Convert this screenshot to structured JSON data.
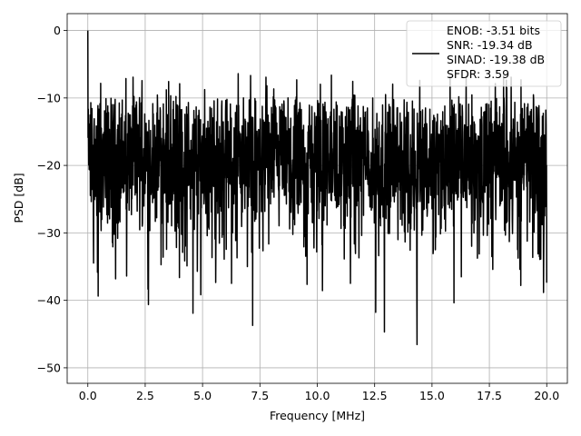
{
  "chart_data": {
    "type": "line",
    "title": "",
    "xlabel": "Frequency [MHz]",
    "ylabel": "PSD [dB]",
    "xlim": [
      -0.9,
      20.9
    ],
    "ylim": [
      -52.3,
      2.5
    ],
    "xticks": [
      0.0,
      2.5,
      5.0,
      7.5,
      10.0,
      12.5,
      15.0,
      17.5,
      20.0
    ],
    "xtick_labels": [
      "0.0",
      "2.5",
      "5.0",
      "7.5",
      "10.0",
      "12.5",
      "15.0",
      "17.5",
      "20.0"
    ],
    "yticks": [
      0,
      -10,
      -20,
      -30,
      -40,
      -50
    ],
    "ytick_labels": [
      "0",
      "−10",
      "−20",
      "−30",
      "−40",
      "−50"
    ],
    "grid": true,
    "legend_position": "top-right",
    "series": [
      {
        "color": "#000000",
        "x_range": [
          0,
          20
        ],
        "points": 2000,
        "floor_mean_db": -20,
        "peak_db": 0,
        "max_db": -6,
        "min_db": -49.5,
        "legend_lines": [
          "ENOB: -3.51 bits",
          "SNR: -19.34 dB",
          "SINAD: -19.38 dB",
          "SFDR: 3.59"
        ]
      }
    ]
  }
}
